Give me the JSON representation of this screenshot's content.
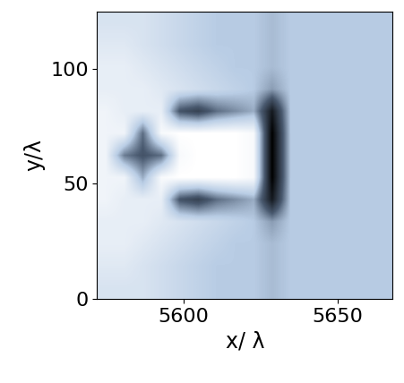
{
  "chart_data": {
    "type": "heatmap",
    "x_label": "x/ λ",
    "y_label": "y/λ",
    "xlim": [
      5572,
      5668
    ],
    "ylim": [
      0,
      125
    ],
    "xticks": [
      5600,
      5650
    ],
    "yticks": [
      0,
      50,
      100
    ],
    "cells": [
      [
        0.6,
        0.6,
        0.6,
        0.7,
        0.8,
        0.9,
        1,
        1,
        1,
        1.1,
        1,
        1,
        1,
        1,
        1,
        1
      ],
      [
        0.5,
        0.5,
        0.6,
        0.7,
        0.8,
        0.9,
        1,
        1,
        1,
        1.1,
        1,
        1,
        1,
        1,
        1,
        1
      ],
      [
        0.4,
        0.4,
        0.5,
        0.6,
        0.7,
        0.8,
        0.9,
        1,
        1,
        1.1,
        1,
        1,
        1,
        1,
        1,
        1
      ],
      [
        0.4,
        0.4,
        0.4,
        0.5,
        0.6,
        0.7,
        0.8,
        0.9,
        1,
        1.3,
        1,
        1,
        1,
        1,
        1,
        1
      ],
      [
        0.3,
        0.4,
        0.4,
        0.4,
        1.8,
        2.0,
        1.6,
        1.4,
        1.2,
        2.5,
        1,
        1,
        1,
        1,
        1,
        1
      ],
      [
        0.3,
        0.3,
        1.2,
        0.2,
        0.1,
        0.1,
        0.1,
        0.1,
        0.2,
        2.8,
        1,
        1,
        1,
        1,
        1,
        1
      ],
      [
        0.3,
        1.5,
        1.8,
        1.6,
        0.2,
        0.1,
        0.1,
        0.1,
        0.2,
        2.8,
        1,
        1,
        1,
        1,
        1,
        1
      ],
      [
        0.3,
        0.3,
        1.6,
        0.2,
        0.1,
        0.1,
        0.1,
        0.1,
        0.2,
        2.8,
        1,
        1,
        1,
        1,
        1,
        1
      ],
      [
        0.3,
        0.4,
        0.4,
        0.4,
        1.8,
        2.0,
        1.6,
        1.4,
        1.2,
        2.5,
        1,
        1,
        1,
        1,
        1,
        1
      ],
      [
        0.4,
        0.4,
        0.4,
        0.5,
        0.6,
        0.7,
        0.8,
        0.9,
        1,
        1.3,
        1,
        1,
        1,
        1,
        1,
        1
      ],
      [
        0.4,
        0.4,
        0.5,
        0.6,
        0.7,
        0.8,
        0.9,
        1,
        1,
        1.1,
        1,
        1,
        1,
        1,
        1,
        1
      ],
      [
        0.5,
        0.5,
        0.6,
        0.7,
        0.8,
        0.9,
        1,
        1,
        1,
        1.1,
        1,
        1,
        1,
        1,
        1,
        1
      ],
      [
        0.6,
        0.6,
        0.6,
        0.7,
        0.8,
        0.9,
        1,
        1,
        1,
        1.1,
        1,
        1,
        1,
        1,
        1,
        1
      ]
    ]
  }
}
